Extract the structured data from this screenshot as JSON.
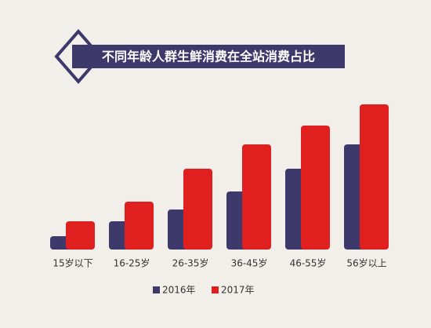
{
  "chart_data": {
    "type": "bar",
    "title": "不同年龄人群生鲜消费在全站消费占比",
    "categories": [
      "15岁以下",
      "16-25岁",
      "26-35岁",
      "36-45岁",
      "46-55岁",
      "56岁以上"
    ],
    "series": [
      {
        "name": "2016年",
        "color": "#3d3a6b",
        "values": [
          17,
          36,
          51,
          74,
          103,
          134
        ]
      },
      {
        "name": "2017年",
        "color": "#e0201f",
        "values": [
          36,
          61,
          103,
          134,
          158,
          185
        ]
      }
    ],
    "ylim": [
      0,
      185
    ],
    "grid": false
  }
}
